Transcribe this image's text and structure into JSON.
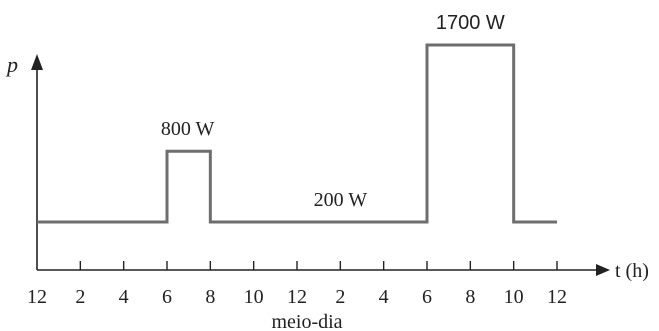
{
  "chart_data": {
    "type": "line",
    "ylabel": "p",
    "xlabel": "t (h)",
    "x_ticks": [
      0,
      2,
      4,
      6,
      8,
      10,
      12,
      14,
      16,
      18,
      20,
      22,
      24
    ],
    "x_tick_labels": [
      "12",
      "2",
      "4",
      "6",
      "8",
      "10",
      "12",
      "2",
      "4",
      "6",
      "8",
      "10",
      "12"
    ],
    "x_note": "meio-dia",
    "xlim": [
      0,
      24
    ],
    "series": [
      {
        "x": [
          0,
          6,
          6,
          8,
          8,
          18,
          18,
          22,
          22,
          24
        ],
        "y": [
          200,
          200,
          800,
          800,
          200,
          200,
          1700,
          1700,
          200,
          200
        ]
      }
    ],
    "annotations": [
      {
        "text": "800 W",
        "x": 7,
        "y": 800
      },
      {
        "text": "200 W",
        "x": 14,
        "y": 200
      },
      {
        "text": "1700 W",
        "x": 20,
        "y": 1700
      }
    ],
    "grid": false,
    "line_color": "#6e6e6e",
    "axis_color": "#222222"
  }
}
